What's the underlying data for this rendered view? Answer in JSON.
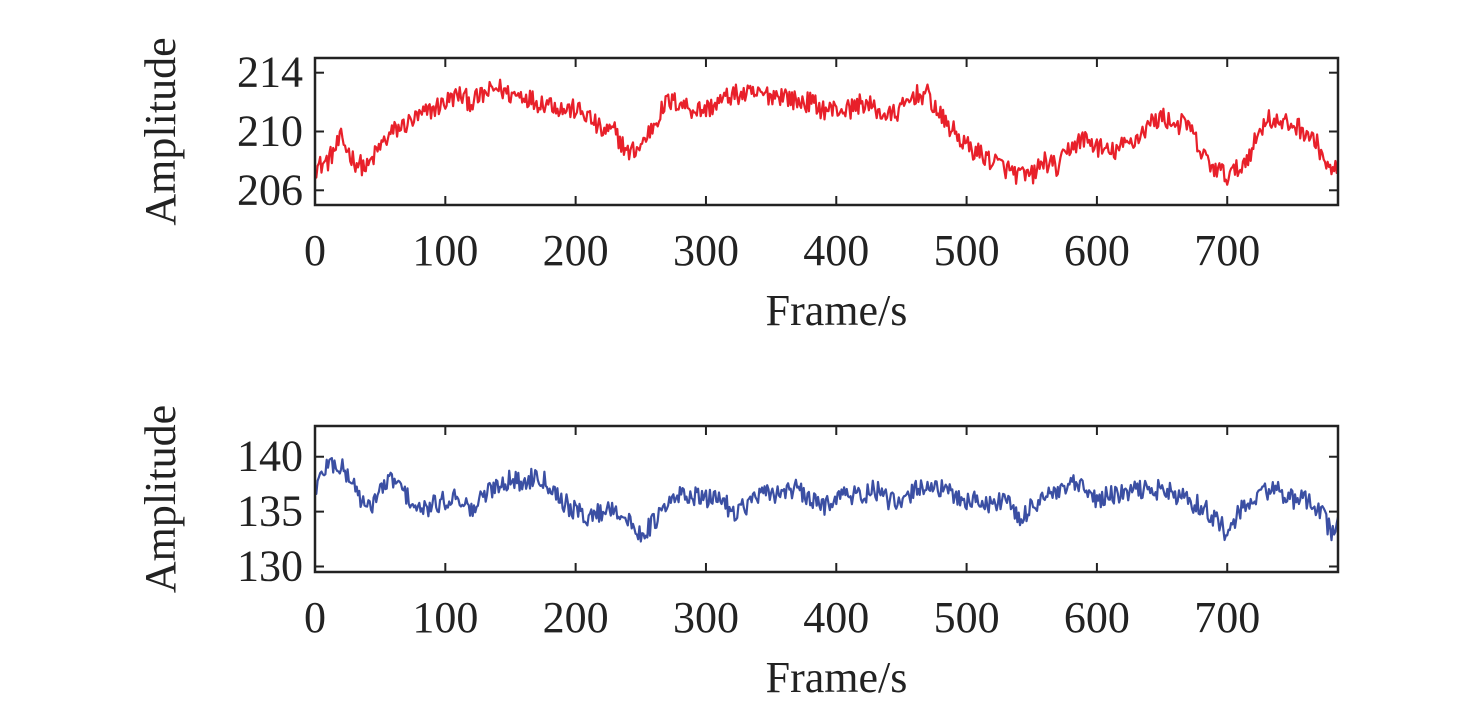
{
  "chart_data": [
    {
      "type": "line",
      "title": "",
      "xlabel": "Frame/s",
      "ylabel": "Amplitude",
      "xlim": [
        0,
        785
      ],
      "ylim": [
        205,
        215
      ],
      "xticks": [
        0,
        100,
        200,
        300,
        400,
        500,
        600,
        700
      ],
      "yticks": [
        206,
        210,
        214
      ],
      "color": "#e8202a",
      "grid": false,
      "series": [
        {
          "x": [
            0,
            10,
            20,
            30,
            40,
            50,
            60,
            70,
            80,
            90,
            100,
            110,
            120,
            130,
            140,
            150,
            160,
            170,
            180,
            190,
            200,
            210,
            220,
            230,
            240,
            250,
            260,
            270,
            280,
            290,
            300,
            310,
            320,
            330,
            340,
            350,
            360,
            370,
            380,
            390,
            400,
            410,
            420,
            430,
            440,
            450,
            460,
            470,
            480,
            490,
            500,
            510,
            520,
            530,
            540,
            550,
            560,
            570,
            580,
            590,
            600,
            610,
            620,
            630,
            640,
            650,
            660,
            670,
            680,
            690,
            700,
            710,
            720,
            730,
            740,
            750,
            760,
            770,
            780,
            785
          ],
          "y": [
            207.5,
            208,
            209.5,
            208,
            207.5,
            209,
            210,
            210.5,
            211,
            211.5,
            212,
            212.5,
            212,
            212.5,
            213,
            212.5,
            212.5,
            212,
            212,
            211.5,
            211.5,
            211,
            210,
            210,
            208.5,
            209,
            210.5,
            212,
            212,
            211.5,
            211.5,
            212,
            212.5,
            212.5,
            212.5,
            212.5,
            212.5,
            212,
            212,
            211.5,
            211.5,
            211.5,
            212,
            211.5,
            211,
            211.5,
            212.5,
            212.5,
            211,
            210,
            209,
            208.5,
            208,
            207.5,
            207,
            207,
            208,
            207.5,
            209,
            209.5,
            209,
            208.5,
            209,
            209.5,
            210.5,
            211,
            210.5,
            210.5,
            208.5,
            207.5,
            207,
            207.5,
            209,
            211,
            210.5,
            210.5,
            210,
            209,
            207,
            208
          ]
        }
      ]
    },
    {
      "type": "line",
      "title": "",
      "xlabel": "Frame/s",
      "ylabel": "Amplitude",
      "xlim": [
        0,
        785
      ],
      "ylim": [
        129.5,
        142.8
      ],
      "xticks": [
        0,
        100,
        200,
        300,
        400,
        500,
        600,
        700
      ],
      "yticks": [
        130,
        135,
        140
      ],
      "color": "#3b4fa3",
      "grid": false,
      "series": [
        {
          "x": [
            0,
            10,
            20,
            30,
            40,
            50,
            60,
            70,
            80,
            90,
            100,
            110,
            120,
            130,
            140,
            150,
            160,
            170,
            180,
            190,
            200,
            210,
            220,
            230,
            240,
            250,
            260,
            270,
            280,
            290,
            300,
            310,
            320,
            330,
            340,
            350,
            360,
            370,
            380,
            390,
            400,
            410,
            420,
            430,
            440,
            450,
            460,
            470,
            480,
            490,
            500,
            510,
            520,
            530,
            540,
            550,
            560,
            570,
            580,
            590,
            600,
            610,
            620,
            630,
            640,
            650,
            660,
            670,
            680,
            690,
            700,
            710,
            720,
            730,
            740,
            750,
            760,
            770,
            780,
            785
          ],
          "y": [
            137,
            139.5,
            139,
            137.5,
            135,
            137,
            138,
            136.5,
            135,
            135.5,
            136,
            136.5,
            135,
            136.5,
            137.5,
            138,
            137.5,
            138.5,
            137.5,
            136,
            135,
            134.5,
            135,
            135.5,
            134,
            133,
            134,
            135.5,
            136.5,
            136.5,
            136,
            136.5,
            135,
            135.5,
            136.5,
            136.5,
            137,
            137,
            136,
            135.5,
            136.5,
            136.5,
            136.5,
            137,
            136,
            135.5,
            137,
            137.5,
            137,
            136.5,
            136,
            136,
            135.5,
            136.5,
            134,
            135.5,
            136.5,
            136.5,
            137.5,
            137,
            136,
            136.5,
            136.5,
            137,
            137,
            137,
            136.5,
            136,
            135.5,
            134.5,
            133,
            135,
            136,
            137,
            137,
            136,
            136,
            135.5,
            133,
            134.5
          ]
        }
      ]
    }
  ]
}
